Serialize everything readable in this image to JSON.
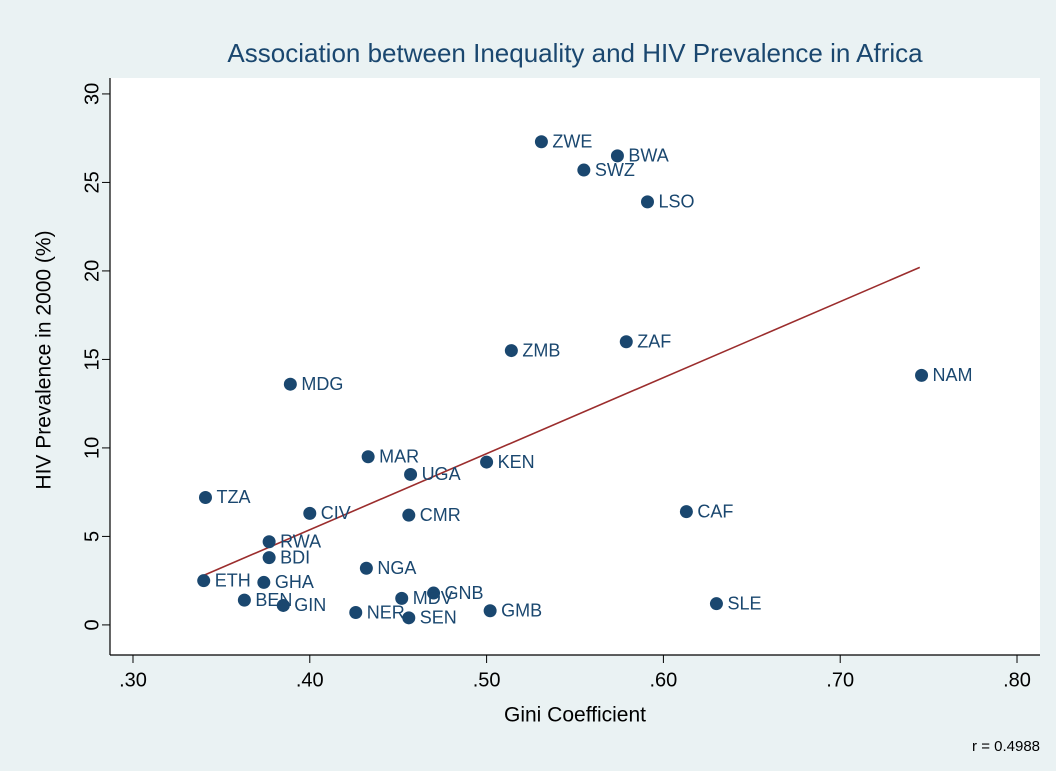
{
  "chart_data": {
    "type": "scatter",
    "title": "Association between Inequality and HIV Prevalence in Africa",
    "x_label": "Gini Coefficient",
    "y_label": "HIV Prevalence in 2000 (%)",
    "note": "r = 0.4988",
    "color": "#1a476f",
    "grid": false,
    "xlim": [
      0.287,
      0.813
    ],
    "ylim": [
      -1.7,
      30.9
    ],
    "xticks": [
      {
        "value": 0.3,
        "label": ".30"
      },
      {
        "value": 0.4,
        "label": ".40"
      },
      {
        "value": 0.5,
        "label": ".50"
      },
      {
        "value": 0.6,
        "label": ".60"
      },
      {
        "value": 0.7,
        "label": ".70"
      },
      {
        "value": 0.8,
        "label": ".80"
      }
    ],
    "yticks": [
      0,
      5,
      10,
      15,
      20,
      25,
      30
    ],
    "points": [
      {
        "label": "ZWE",
        "x": 0.531,
        "y": 27.3
      },
      {
        "label": "BWA",
        "x": 0.574,
        "y": 26.5
      },
      {
        "label": "SWZ",
        "x": 0.555,
        "y": 25.7
      },
      {
        "label": "LSO",
        "x": 0.591,
        "y": 23.9
      },
      {
        "label": "ZAF",
        "x": 0.579,
        "y": 16.0
      },
      {
        "label": "ZMB",
        "x": 0.514,
        "y": 15.5
      },
      {
        "label": "NAM",
        "x": 0.746,
        "y": 14.1
      },
      {
        "label": "MDG",
        "x": 0.389,
        "y": 13.6
      },
      {
        "label": "MAR",
        "x": 0.433,
        "y": 9.5
      },
      {
        "label": "KEN",
        "x": 0.5,
        "y": 9.2
      },
      {
        "label": "UGA",
        "x": 0.457,
        "y": 8.5
      },
      {
        "label": "TZA",
        "x": 0.341,
        "y": 7.2
      },
      {
        "label": "CIV",
        "x": 0.4,
        "y": 6.3
      },
      {
        "label": "CMR",
        "x": 0.456,
        "y": 6.2
      },
      {
        "label": "CAF",
        "x": 0.613,
        "y": 6.4
      },
      {
        "label": "RWA",
        "x": 0.377,
        "y": 4.7
      },
      {
        "label": "BDI",
        "x": 0.377,
        "y": 3.8
      },
      {
        "label": "NGA",
        "x": 0.432,
        "y": 3.2
      },
      {
        "label": "ETH",
        "x": 0.34,
        "y": 2.5
      },
      {
        "label": "GHA",
        "x": 0.374,
        "y": 2.4
      },
      {
        "label": "GNB",
        "x": 0.47,
        "y": 1.8
      },
      {
        "label": "MDV",
        "x": 0.452,
        "y": 1.5
      },
      {
        "label": "BEN",
        "x": 0.363,
        "y": 1.4
      },
      {
        "label": "GIN",
        "x": 0.385,
        "y": 1.1
      },
      {
        "label": "SLE",
        "x": 0.63,
        "y": 1.2
      },
      {
        "label": "GMB",
        "x": 0.502,
        "y": 0.8
      },
      {
        "label": "NER",
        "x": 0.426,
        "y": 0.7
      },
      {
        "label": "SEN",
        "x": 0.456,
        "y": 0.4
      }
    ],
    "fit_line": {
      "x": [
        0.34,
        0.745
      ],
      "y": [
        2.8,
        20.2
      ],
      "color": "#9b2d2d"
    }
  }
}
